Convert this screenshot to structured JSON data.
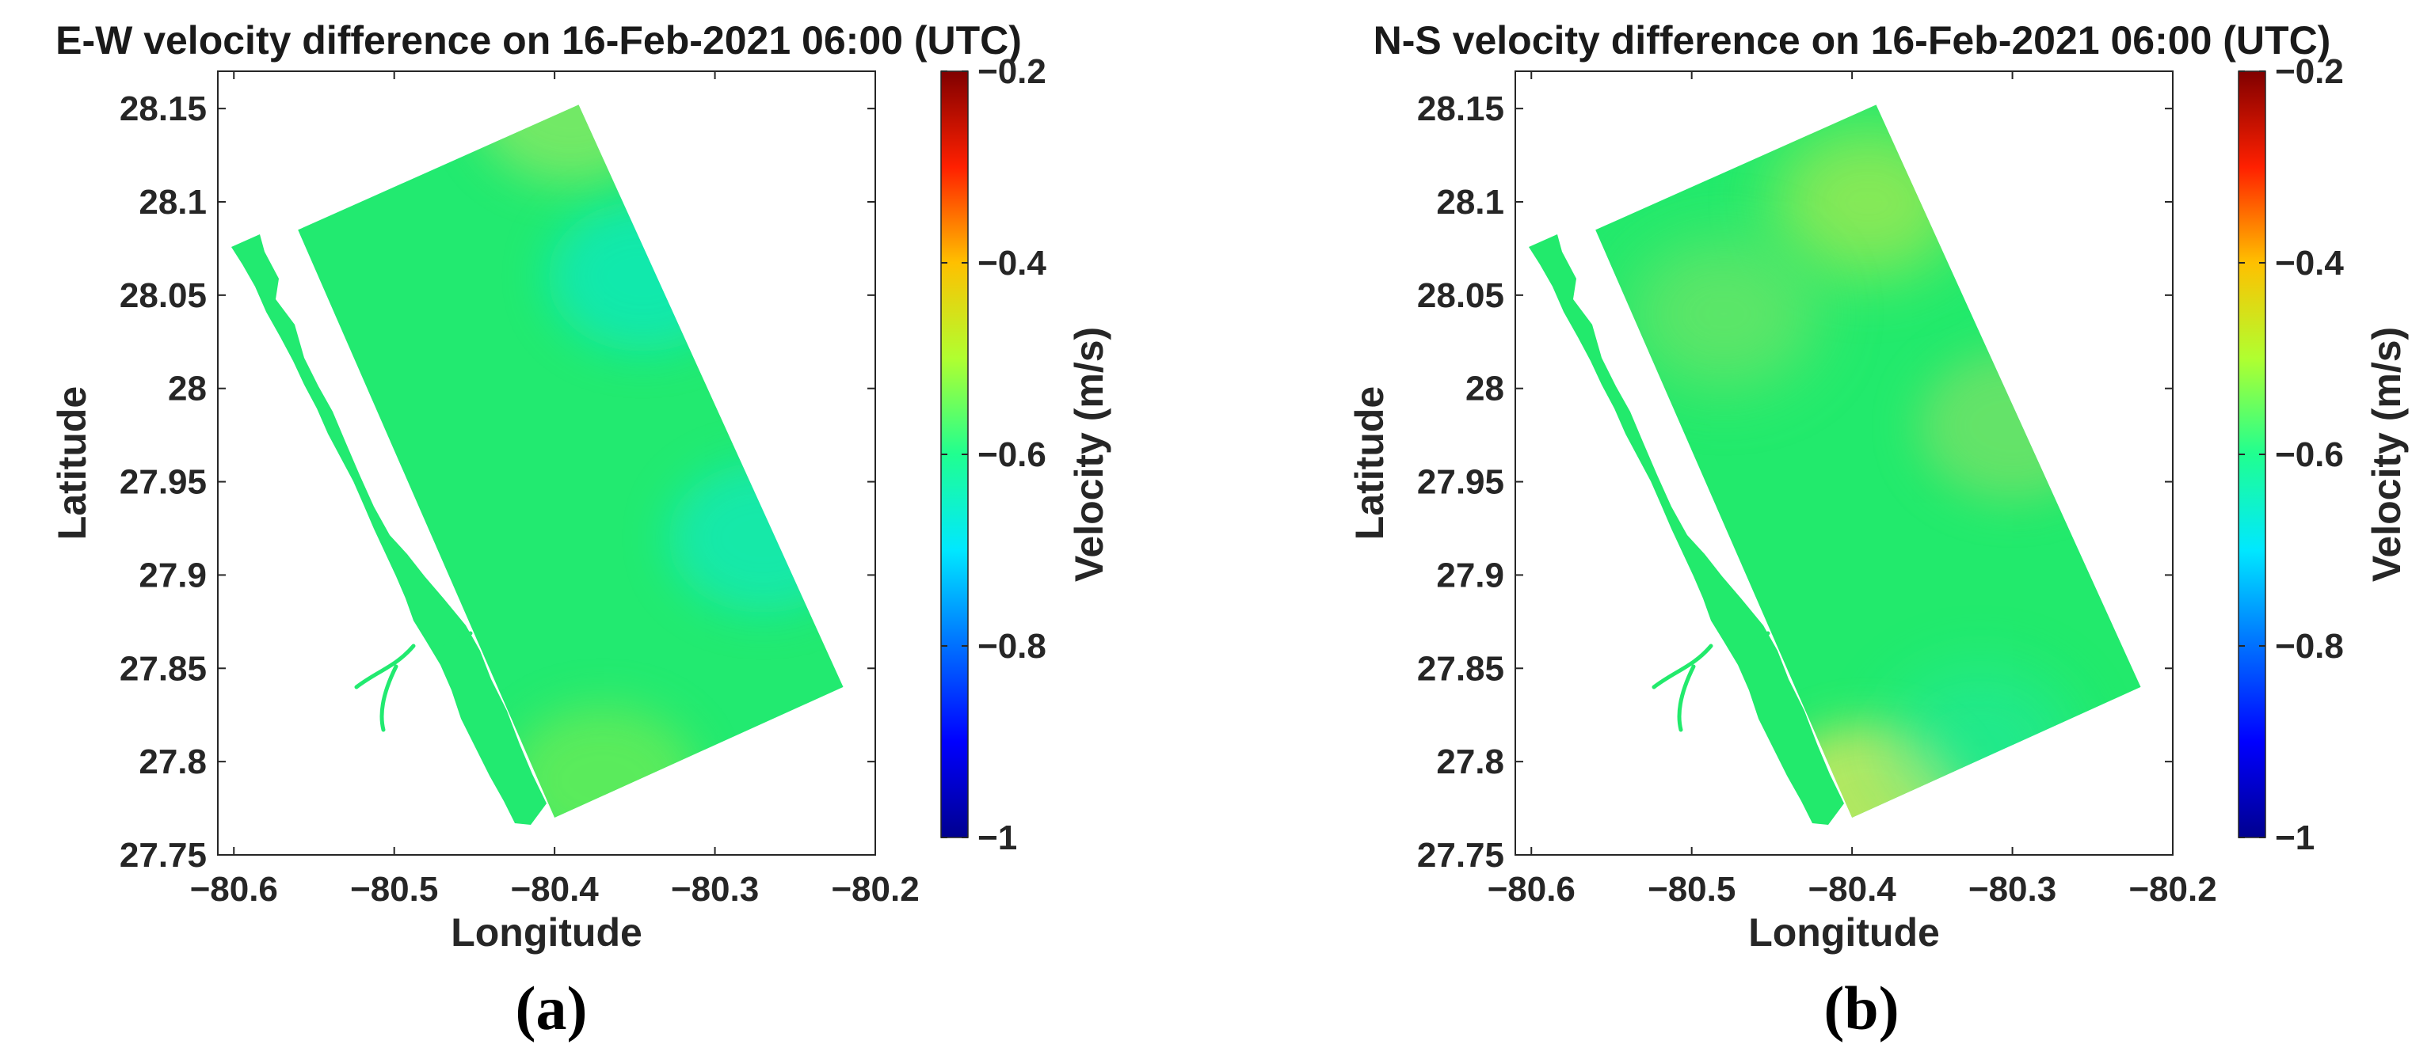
{
  "colors": {
    "axis": "#262626",
    "text": "#262626"
  },
  "colormap": [
    "#00008f",
    "#0000ff",
    "#0080ff",
    "#00ffff",
    "#80ff80",
    "#ffff00",
    "#ff8000",
    "#ff0000",
    "#800000"
  ],
  "chart_data": [
    {
      "type": "heatmap",
      "title": "E-W velocity difference on 16-Feb-2021 06:00 (UTC)",
      "xlabel": "Longitude",
      "ylabel": "Latitude",
      "xlim": [
        -80.61,
        -80.2
      ],
      "ylim": [
        27.75,
        28.17
      ],
      "xticks": [
        -80.6,
        -80.5,
        -80.4,
        -80.3,
        -80.2
      ],
      "xtick_labels": [
        "−80.6",
        "−80.5",
        "−80.4",
        "−80.3",
        "−80.2"
      ],
      "yticks": [
        27.75,
        27.8,
        27.85,
        27.9,
        27.95,
        28,
        28.05,
        28.1,
        28.15
      ],
      "ytick_labels": [
        "27.75",
        "27.8",
        "27.85",
        "27.9",
        "27.95",
        "28",
        "28.05",
        "28.1",
        "28.15"
      ],
      "colorbar": {
        "label": "Velocity (m/s)",
        "range": [
          -1,
          -0.2
        ],
        "ticks": [
          -1,
          -0.8,
          -0.6,
          -0.4,
          -0.2
        ],
        "tick_labels": [
          "−1",
          "−0.8",
          "−0.6",
          "−0.4",
          "−0.2"
        ]
      },
      "domain_corners": [
        [
          -80.56,
          28.085
        ],
        [
          -80.385,
          28.152
        ],
        [
          -80.22,
          27.84
        ],
        [
          -80.4,
          27.77
        ]
      ],
      "dominant_value": -0.6,
      "field_features": [
        {
          "lon": -80.345,
          "lat": 28.06,
          "value": -0.65
        },
        {
          "lon": -80.27,
          "lat": 27.92,
          "value": -0.66
        },
        {
          "lon": -80.39,
          "lat": 28.15,
          "value": -0.56
        },
        {
          "lon": -80.37,
          "lat": 27.79,
          "value": -0.57
        }
      ],
      "panel_label": "(a)"
    },
    {
      "type": "heatmap",
      "title": "N-S velocity difference on 16-Feb-2021 06:00 (UTC)",
      "xlabel": "Longitude",
      "ylabel": "Latitude",
      "xlim": [
        -80.61,
        -80.2
      ],
      "ylim": [
        27.75,
        28.17
      ],
      "xticks": [
        -80.6,
        -80.5,
        -80.4,
        -80.3,
        -80.2
      ],
      "xtick_labels": [
        "−80.6",
        "−80.5",
        "−80.4",
        "−80.3",
        "−80.2"
      ],
      "yticks": [
        27.75,
        27.8,
        27.85,
        27.9,
        27.95,
        28,
        28.05,
        28.1,
        28.15
      ],
      "ytick_labels": [
        "27.75",
        "27.8",
        "27.85",
        "27.9",
        "27.95",
        "28",
        "28.05",
        "28.1",
        "28.15"
      ],
      "colorbar": {
        "label": "Velocity (m/s)",
        "range": [
          -1,
          -0.2
        ],
        "ticks": [
          -1,
          -0.8,
          -0.6,
          -0.4,
          -0.2
        ],
        "tick_labels": [
          "−1",
          "−0.8",
          "−0.6",
          "−0.4",
          "−0.2"
        ]
      },
      "domain_corners": [
        [
          -80.56,
          28.085
        ],
        [
          -80.385,
          28.152
        ],
        [
          -80.22,
          27.84
        ],
        [
          -80.4,
          27.77
        ]
      ],
      "dominant_value": -0.6,
      "field_features": [
        {
          "lon": -80.39,
          "lat": 28.1,
          "value": -0.55
        },
        {
          "lon": -80.48,
          "lat": 28.04,
          "value": -0.58
        },
        {
          "lon": -80.3,
          "lat": 27.98,
          "value": -0.58
        },
        {
          "lon": -80.39,
          "lat": 27.78,
          "value": -0.54
        },
        {
          "lon": -80.32,
          "lat": 27.81,
          "value": -0.63
        }
      ],
      "panel_label": "(b)"
    }
  ]
}
